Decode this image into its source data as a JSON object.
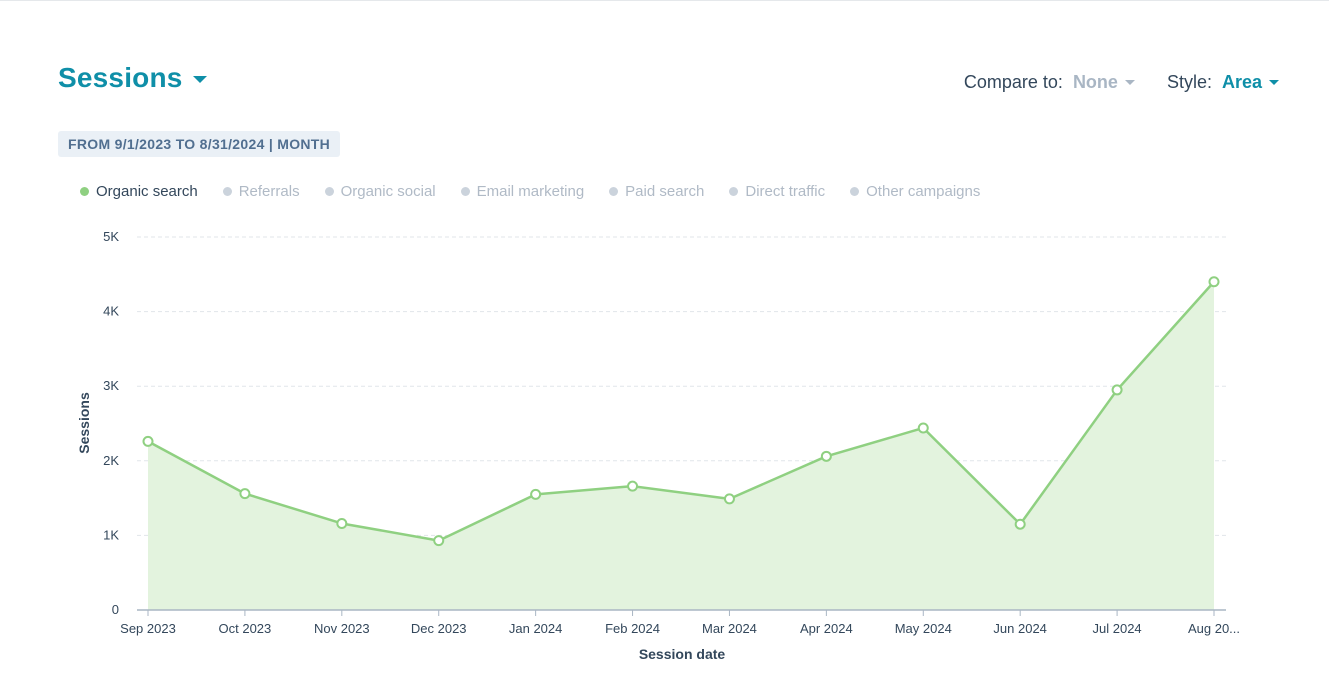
{
  "header": {
    "title": "Sessions",
    "compare_label": "Compare to:",
    "compare_value": "None",
    "style_label": "Style:",
    "style_value": "Area",
    "date_range": "FROM 9/1/2023 TO 8/31/2024 | MONTH"
  },
  "legend": [
    {
      "label": "Organic search",
      "active": true
    },
    {
      "label": "Referrals",
      "active": false
    },
    {
      "label": "Organic social",
      "active": false
    },
    {
      "label": "Email marketing",
      "active": false
    },
    {
      "label": "Paid search",
      "active": false
    },
    {
      "label": "Direct traffic",
      "active": false
    },
    {
      "label": "Other campaigns",
      "active": false
    }
  ],
  "colors": {
    "accent": "#0f8fa8",
    "series_line": "#8fd081",
    "series_fill": "#e3f3de",
    "grid": "#e1e5ea",
    "axis": "#a9b6c4"
  },
  "chart_data": {
    "type": "area",
    "xlabel": "Session date",
    "ylabel": "Sessions",
    "ylim": [
      0,
      5000
    ],
    "yticks": [
      0,
      1000,
      2000,
      3000,
      4000,
      5000
    ],
    "ytick_labels": [
      "0",
      "1K",
      "2K",
      "3K",
      "4K",
      "5K"
    ],
    "categories": [
      "Sep 2023",
      "Oct 2023",
      "Nov 2023",
      "Dec 2023",
      "Jan 2024",
      "Feb 2024",
      "Mar 2024",
      "Apr 2024",
      "May 2024",
      "Jun 2024",
      "Jul 2024",
      "Aug 20..."
    ],
    "series": [
      {
        "name": "Organic search",
        "values": [
          2260,
          1560,
          1160,
          930,
          1550,
          1660,
          1490,
          2060,
          2440,
          1150,
          2950,
          4400
        ]
      }
    ],
    "grid": true,
    "legend_position": "top-left"
  }
}
